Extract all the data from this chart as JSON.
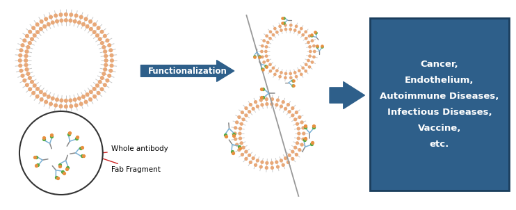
{
  "background_color": "#ffffff",
  "fig_width": 7.42,
  "fig_height": 3.02,
  "dpi": 100,
  "liposome_head_color": "#E8A878",
  "liposome_tail_color": "#C8C8C8",
  "arrow_color": "#2E5F8A",
  "box_color": "#2E5F8A",
  "box_edge_color": "#1a3d5c",
  "box_text_color": "#ffffff",
  "box_text": "Cancer,\nEndothelium,\nAutoimmune Diseases,\nInfectious Diseases,\nVaccine,\netc.",
  "functionalization_label": "Functionalization",
  "fab_fragment_label": "Fab Fragment",
  "whole_antibody_label": "Whole antibody",
  "antibody_blue": "#7AB0D4",
  "antibody_green": "#55AA44",
  "antibody_orange": "#E89040",
  "antibody_gray": "#888888",
  "label_arrow_color": "#CC2222",
  "slash_color": "#999999"
}
